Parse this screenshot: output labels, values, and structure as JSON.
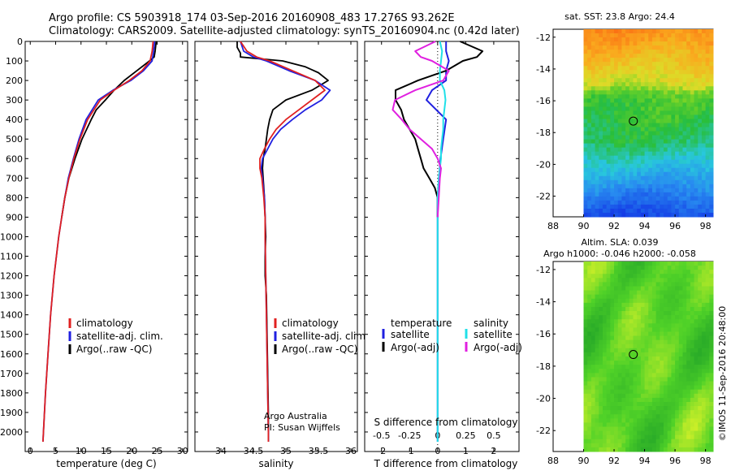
{
  "header": {
    "title_line1": "Argo profile: CS 5903918_174 03-Sep-2016 20160908_483 17.276S 93.262E",
    "title_line2": "Climatology: CARS2009. Satellite-adjusted climatology: synTS_20160904.nc (0.42d later)"
  },
  "colors": {
    "climatology": "#e02020",
    "satellite": "#2020e0",
    "argo": "#000000",
    "sal_satellite": "#20e0e8",
    "sal_argo": "#e020e0"
  },
  "chart_data": [
    {
      "name": "temperature-profile",
      "type": "line",
      "xlabel": "temperature (deg C)",
      "xlim": [
        -1,
        31
      ],
      "ylim": [
        2100,
        0
      ],
      "x_ticks": [
        0,
        5,
        10,
        15,
        20,
        25,
        30
      ],
      "y_ticks": [
        0,
        100,
        200,
        300,
        400,
        500,
        600,
        700,
        800,
        900,
        1000,
        1100,
        1200,
        1300,
        1400,
        1500,
        1600,
        1700,
        1800,
        1900,
        2000
      ],
      "series": [
        {
          "name": "climatology",
          "color": "#e02020",
          "depth": [
            0,
            50,
            100,
            150,
            200,
            250,
            300,
            400,
            500,
            600,
            700,
            800,
            900,
            1000,
            1200,
            1400,
            1600,
            1800,
            2000,
            2050
          ],
          "values": [
            24.2,
            24.0,
            23.6,
            22.0,
            19.5,
            16.5,
            13.8,
            11.3,
            9.8,
            8.6,
            7.6,
            6.8,
            6.2,
            5.6,
            4.7,
            4.0,
            3.5,
            3.0,
            2.6,
            2.5
          ]
        },
        {
          "name": "satellite-adj. clim.",
          "color": "#2020e0",
          "depth": [
            0,
            50,
            100,
            150,
            200,
            250,
            300,
            400,
            500,
            600,
            700,
            800,
            900,
            1000,
            1200,
            1400,
            1600,
            1800,
            2000,
            2050
          ],
          "values": [
            24.5,
            24.3,
            24.0,
            22.3,
            19.8,
            16.3,
            13.4,
            11.0,
            9.6,
            8.5,
            7.5,
            6.8,
            6.2,
            5.6,
            4.7,
            4.0,
            3.5,
            3.0,
            2.6,
            2.5
          ]
        },
        {
          "name": "Argo(..raw -QC)",
          "color": "#000000",
          "depth": [
            0,
            50,
            80,
            100,
            150,
            200,
            250,
            300,
            350,
            400,
            500,
            600,
            700,
            800,
            900
          ],
          "values": [
            24.8,
            24.6,
            24.4,
            23.5,
            21.0,
            18.5,
            16.5,
            14.8,
            13.0,
            12.0,
            10.2,
            8.8,
            7.6,
            6.8,
            6.2
          ]
        }
      ],
      "legend": [
        "climatology",
        "satellite-adj. clim.",
        "Argo(..raw -QC)"
      ]
    },
    {
      "name": "salinity-profile",
      "type": "line",
      "xlabel": "salinity",
      "xlim": [
        33.6,
        36.1
      ],
      "ylim": [
        2100,
        0
      ],
      "x_ticks": [
        34,
        34.5,
        35,
        35.5,
        36
      ],
      "series": [
        {
          "name": "climatology",
          "color": "#e02020",
          "depth": [
            0,
            50,
            80,
            100,
            150,
            200,
            250,
            300,
            350,
            400,
            450,
            500,
            550,
            600,
            650,
            700,
            800,
            900,
            1000,
            1200,
            1400,
            1600,
            1800,
            2000,
            2050
          ],
          "values": [
            34.3,
            34.4,
            34.55,
            34.75,
            35.1,
            35.45,
            35.6,
            35.4,
            35.2,
            35.0,
            34.85,
            34.75,
            34.67,
            34.6,
            34.6,
            34.63,
            34.66,
            34.68,
            34.68,
            34.69,
            34.7,
            34.71,
            34.72,
            34.73,
            34.73
          ]
        },
        {
          "name": "satellite-adj. clim.",
          "color": "#2020e0",
          "depth": [
            0,
            50,
            80,
            100,
            150,
            200,
            250,
            300,
            350,
            400,
            450,
            500,
            550,
            600,
            650,
            700,
            800,
            900,
            1000,
            1200,
            1400,
            1600,
            1800,
            2000,
            2050
          ],
          "values": [
            34.3,
            34.35,
            34.5,
            34.7,
            35.05,
            35.45,
            35.68,
            35.55,
            35.3,
            35.1,
            34.92,
            34.8,
            34.72,
            34.64,
            34.62,
            34.64,
            34.67,
            34.68,
            34.68,
            34.69,
            34.7,
            34.71,
            34.72,
            34.73,
            34.73
          ]
        },
        {
          "name": "Argo(..raw -QC)",
          "color": "#000000",
          "depth": [
            0,
            30,
            60,
            80,
            100,
            130,
            160,
            200,
            250,
            300,
            350,
            400,
            450,
            500,
            550,
            600,
            650,
            700,
            800,
            900,
            1000,
            1100,
            1200,
            1300,
            1500,
            1700,
            1900,
            2050
          ],
          "values": [
            34.25,
            34.25,
            34.3,
            34.3,
            34.95,
            35.3,
            35.5,
            35.65,
            35.4,
            35.0,
            34.8,
            34.75,
            34.72,
            34.7,
            34.68,
            34.65,
            34.64,
            34.65,
            34.67,
            34.68,
            34.69,
            34.68,
            34.68,
            34.7,
            34.71,
            34.72,
            34.73,
            34.73
          ]
        }
      ],
      "legend": [
        "climatology",
        "satellite-adj. clim.",
        "Argo(..raw -QC)"
      ],
      "annotation_line1": "Argo Australia",
      "annotation_line2": "PI: Susan Wijffels"
    },
    {
      "name": "difference-profile",
      "type": "line",
      "xlabel_top": "S difference from climatology",
      "xlabel": "T difference from climatology",
      "t_xlim": [
        -2.6,
        2.9
      ],
      "t_ticks": [
        -2,
        -1,
        0,
        1,
        2
      ],
      "s_ticks": [
        -0.5,
        -0.25,
        0,
        0.25,
        0.5
      ],
      "s_tick_labels": [
        "-0.5",
        "-0.25",
        "0",
        "0.25",
        "0.5"
      ],
      "s_per_t": 0.25,
      "ylim": [
        2100,
        0
      ],
      "legend_temperature_title": "temperature",
      "legend_salinity_title": "salinity",
      "legend_satellite": "satellite",
      "legend_argo": "Argo(-adj)",
      "series": [
        {
          "name": "T satellite",
          "color": "#2020e0",
          "scale": "T",
          "depth": [
            0,
            50,
            100,
            150,
            200,
            250,
            300,
            400,
            500,
            600,
            700,
            800,
            900,
            1000,
            1200,
            1400,
            1600,
            1800,
            2000,
            2050
          ],
          "values": [
            0.3,
            0.3,
            0.4,
            0.3,
            0.3,
            -0.2,
            -0.4,
            0.3,
            0.2,
            0.1,
            0.05,
            0,
            0,
            0,
            0,
            0,
            0,
            0,
            0,
            0
          ]
        },
        {
          "name": "T Argo(-adj)",
          "color": "#000000",
          "scale": "T",
          "depth": [
            0,
            50,
            80,
            100,
            150,
            200,
            250,
            300,
            350,
            400,
            450,
            500,
            550,
            600,
            650,
            700,
            750,
            800,
            900
          ],
          "values": [
            0.8,
            1.6,
            1.4,
            0.9,
            0.3,
            -0.7,
            -1.5,
            -1.5,
            -1.3,
            -1.2,
            -1.0,
            -0.8,
            -0.7,
            -0.6,
            -0.5,
            -0.3,
            -0.1,
            0,
            0
          ]
        },
        {
          "name": "S satellite",
          "color": "#20e0e8",
          "scale": "S",
          "depth": [
            0,
            50,
            100,
            150,
            200,
            250,
            300,
            350,
            400,
            450,
            500,
            550,
            600,
            650,
            700,
            800,
            900,
            1000,
            1200,
            1400,
            1600,
            1800,
            2000,
            2050
          ],
          "values": [
            0.02,
            0.04,
            0.03,
            0.02,
            0.02,
            0.06,
            0.07,
            0.06,
            0.05,
            0.05,
            0.04,
            0.03,
            0.03,
            0.02,
            0.01,
            0,
            0,
            0,
            0,
            0,
            0,
            0,
            0,
            0
          ]
        },
        {
          "name": "S Argo(-adj)",
          "color": "#e020e0",
          "scale": "S",
          "depth": [
            0,
            50,
            80,
            100,
            150,
            200,
            250,
            300,
            350,
            400,
            450,
            500,
            550,
            600,
            650,
            700,
            800,
            900
          ],
          "values": [
            -0.02,
            -0.2,
            -0.15,
            -0.05,
            0.1,
            0.05,
            -0.2,
            -0.38,
            -0.4,
            -0.32,
            -0.25,
            -0.15,
            -0.05,
            0,
            0.03,
            0.02,
            0.01,
            0
          ]
        }
      ]
    },
    {
      "name": "sst-map",
      "type": "heatmap",
      "title": "sat. SST: 23.8  Argo: 24.4",
      "xlim": [
        88,
        98.5
      ],
      "ylim": [
        -23.3,
        -11.5
      ],
      "x_ticks": [
        88,
        90,
        92,
        94,
        96,
        98
      ],
      "y_ticks": [
        -12,
        -14,
        -16,
        -18,
        -20,
        -22
      ],
      "y_tick_labels": [
        "-12",
        "-14",
        "-16",
        "-18",
        "-20",
        "-22"
      ],
      "data_xlim": [
        90,
        98.5
      ],
      "profile_lon": 93.262,
      "profile_lat": -17.276
    },
    {
      "name": "sla-map",
      "type": "heatmap",
      "title_line1": "Altim. SLA: 0.039",
      "title_line2": "Argo h1000: -0.046 h2000: -0.058",
      "xlim": [
        88,
        98.5
      ],
      "ylim": [
        -23.3,
        -11.5
      ],
      "x_ticks": [
        88,
        90,
        92,
        94,
        96,
        98
      ],
      "y_ticks": [
        -12,
        -14,
        -16,
        -18,
        -20,
        -22
      ],
      "y_tick_labels": [
        "-12",
        "-14",
        "-16",
        "-18",
        "-20",
        "-22"
      ],
      "data_xlim": [
        90,
        98.5
      ],
      "profile_lon": 93.262,
      "profile_lat": -17.276
    }
  ],
  "credit": "©IMOS 11-Sep-2016 20:48:00"
}
